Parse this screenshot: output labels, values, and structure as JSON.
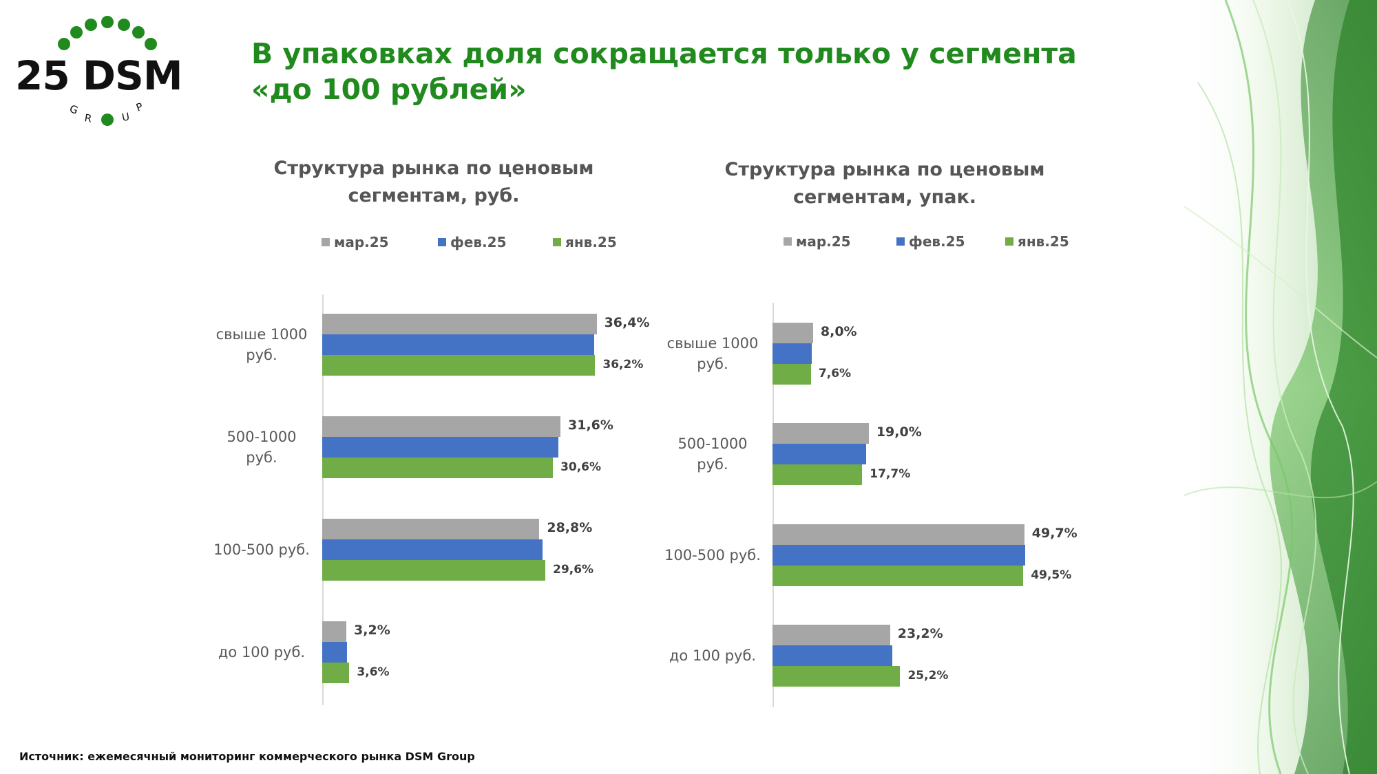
{
  "logo": {
    "brand_text": "25 DSM",
    "sub_text": "GROUP"
  },
  "headline": {
    "line1": "В упаковках доля сокращается только у сегмента",
    "line2": "«до 100 рублей»"
  },
  "colors": {
    "mar": "#a6a6a6",
    "feb": "#4472c4",
    "jan": "#70ad47",
    "headline": "#218a1e"
  },
  "chart_data": [
    {
      "type": "bar",
      "orientation": "horizontal",
      "title_line1": "Структура рынка по ценовым",
      "title_line2": "сегментам, руб.",
      "legend": [
        "мар.25",
        "фев.25",
        "янв.25"
      ],
      "categories": [
        {
          "line1": "свыше 1000",
          "line2": "руб."
        },
        {
          "line1": "500-1000",
          "line2": "руб."
        },
        {
          "line1": "100-500 руб.",
          "line2": ""
        },
        {
          "line1": "до 100 руб.",
          "line2": ""
        }
      ],
      "series": [
        {
          "name": "мар.25",
          "values": [
            36.4,
            31.6,
            28.8,
            3.2
          ],
          "labels": [
            "36,4%",
            "31,6%",
            "28,8%",
            "3,2%"
          ]
        },
        {
          "name": "фев.25",
          "values": [
            36.1,
            31.3,
            29.2,
            3.3
          ]
        },
        {
          "name": "янв.25",
          "values": [
            36.2,
            30.6,
            29.6,
            3.6
          ],
          "labels": [
            "36,2%",
            "30,6%",
            "29,6%",
            "3,6%"
          ]
        }
      ],
      "xlim": [
        0,
        50
      ]
    },
    {
      "type": "bar",
      "orientation": "horizontal",
      "title_line1": "Структура рынка по ценовым",
      "title_line2": "сегментам, упак.",
      "legend": [
        "мар.25",
        "фев.25",
        "янв.25"
      ],
      "categories": [
        {
          "line1": "свыше 1000",
          "line2": "руб."
        },
        {
          "line1": "500-1000",
          "line2": "руб."
        },
        {
          "line1": "100-500 руб.",
          "line2": ""
        },
        {
          "line1": "до 100 руб.",
          "line2": ""
        }
      ],
      "series": [
        {
          "name": "мар.25",
          "values": [
            8.0,
            19.0,
            49.7,
            23.2
          ],
          "labels": [
            "8,0%",
            "19,0%",
            "49,7%",
            "23,2%"
          ]
        },
        {
          "name": "фев.25",
          "values": [
            7.8,
            18.5,
            49.8,
            23.6
          ]
        },
        {
          "name": "янв.25",
          "values": [
            7.6,
            17.7,
            49.5,
            25.2
          ],
          "labels": [
            "7,6%",
            "17,7%",
            "49,5%",
            "25,2%"
          ]
        }
      ],
      "xlim": [
        0,
        60
      ]
    }
  ],
  "source": "Источник: ежемесячный мониторинг коммерческого рынка DSM Group"
}
